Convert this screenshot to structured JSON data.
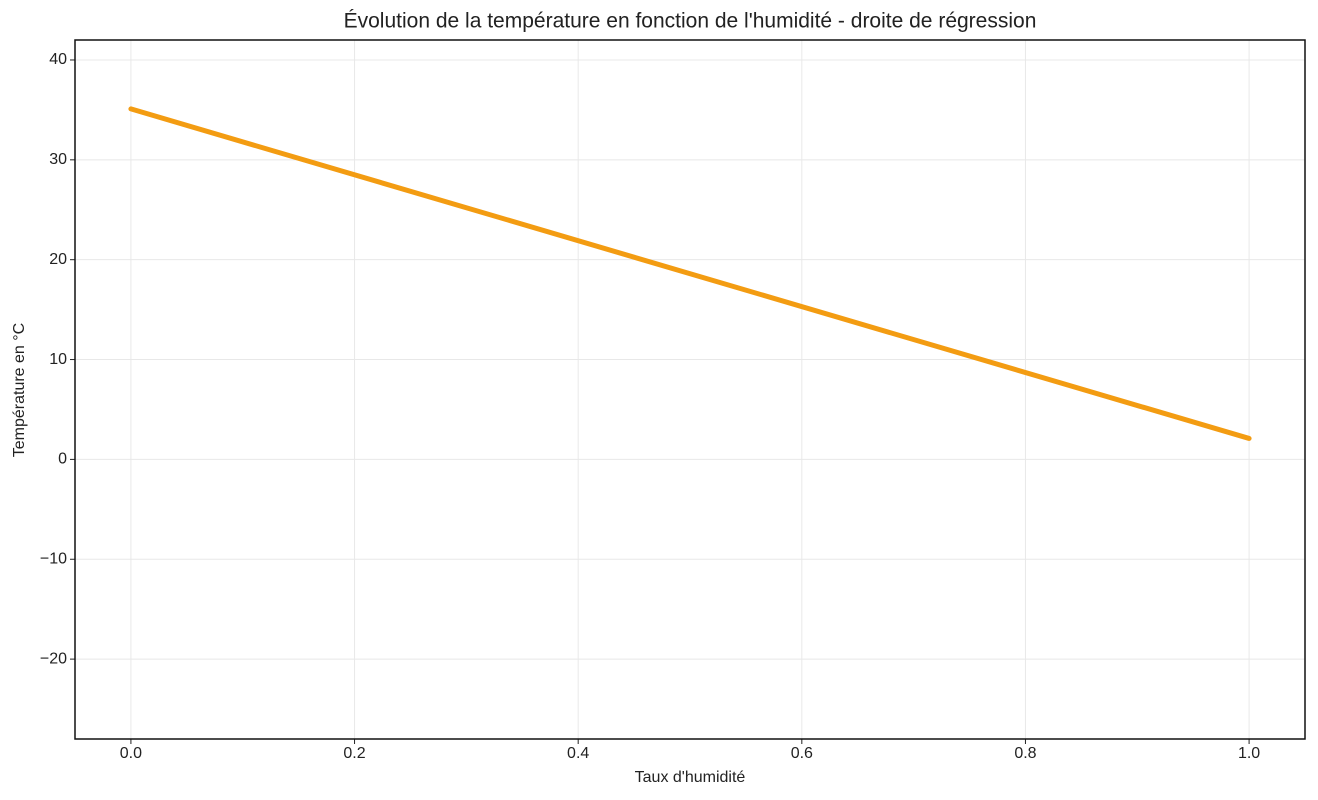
{
  "chart_data": {
    "type": "line",
    "title": "Évolution de la température en fonction de l'humidité - droite de régression",
    "x_label": "Taux d'humidité",
    "y_label": "Température en °C",
    "x": [
      0,
      1
    ],
    "series": [
      {
        "color": "#f39c12",
        "values": [
          35.1,
          2.1
        ]
      }
    ],
    "xlim": [
      -0.05,
      1.05
    ],
    "xticks": [
      {
        "value": 0,
        "label": "0.0"
      },
      0.2,
      0.4,
      0.6,
      0.8,
      {
        "value": 1,
        "label": "1.0"
      }
    ],
    "ylim": [
      -28,
      42
    ],
    "yticks": [
      {
        "value": -20,
        "label": "−20"
      },
      {
        "value": -10,
        "label": "−10"
      },
      0,
      10,
      20,
      30,
      40
    ],
    "grid": true
  }
}
